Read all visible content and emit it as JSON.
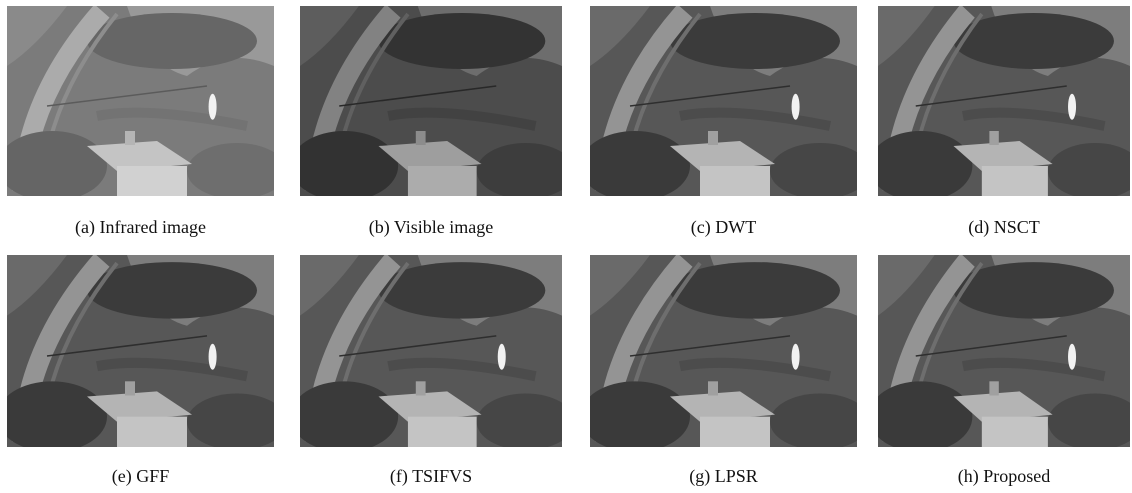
{
  "figure": {
    "panels": [
      {
        "caption": "(a) Infrared image"
      },
      {
        "caption": "(b) Visible image"
      },
      {
        "caption": "(c) DWT"
      },
      {
        "caption": "(d) NSCT"
      },
      {
        "caption": "(e) GFF"
      },
      {
        "caption": "(f) TSIFVS"
      },
      {
        "caption": "(g) LPSR"
      },
      {
        "caption": "(h) Proposed"
      }
    ]
  }
}
